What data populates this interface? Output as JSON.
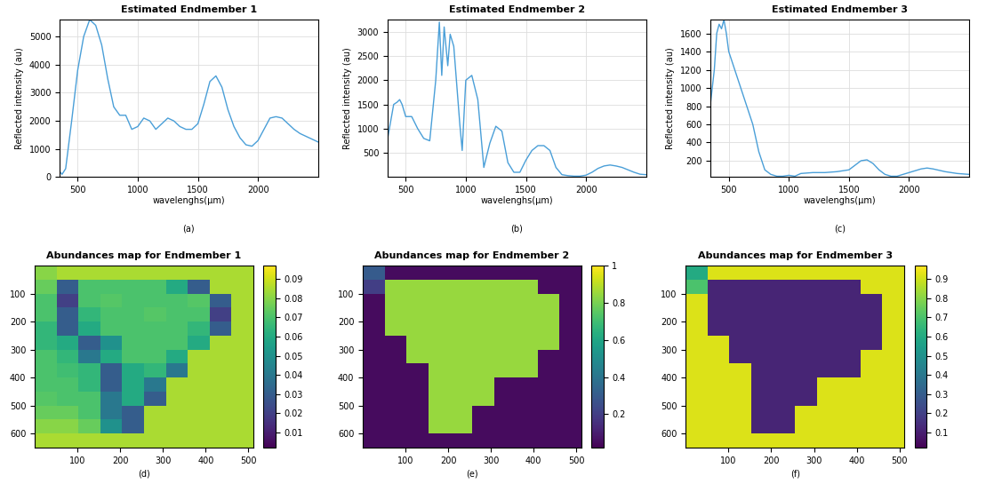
{
  "chart_data": [
    {
      "type": "line",
      "title": "Estimated Endmember 1",
      "x_label": "wavelenghs(µm)",
      "y_label": "Reflected intensity (au)",
      "caption": "(a)",
      "x": [
        350,
        370,
        400,
        450,
        500,
        550,
        600,
        650,
        700,
        750,
        800,
        850,
        900,
        950,
        1000,
        1050,
        1100,
        1150,
        1200,
        1250,
        1300,
        1350,
        1400,
        1450,
        1500,
        1550,
        1600,
        1650,
        1700,
        1750,
        1800,
        1850,
        1900,
        1950,
        2000,
        2050,
        2100,
        2150,
        2200,
        2250,
        2300,
        2350,
        2400,
        2450,
        2500
      ],
      "values": [
        200,
        100,
        300,
        2000,
        3800,
        5000,
        5600,
        5400,
        4700,
        3500,
        2500,
        2200,
        2200,
        1700,
        1800,
        2100,
        2000,
        1700,
        1900,
        2100,
        2000,
        1800,
        1700,
        1700,
        1900,
        2600,
        3400,
        3600,
        3200,
        2400,
        1800,
        1400,
        1150,
        1100,
        1300,
        1700,
        2100,
        2150,
        2100,
        1900,
        1700,
        1550,
        1450,
        1350,
        1250
      ],
      "color": "#4a9fd8",
      "xlim": [
        350,
        2500
      ],
      "ylim": [
        0,
        5600
      ],
      "xticks": [
        500,
        1000,
        1500,
        2000
      ],
      "yticks": [
        0,
        1000,
        2000,
        3000,
        4000,
        5000
      ],
      "grid": true
    },
    {
      "type": "line",
      "title": "Estimated Endmember 2",
      "x_label": "wavelenghs(µm)",
      "y_label": "Reflected intensity (au)",
      "caption": "(b)",
      "x": [
        350,
        400,
        430,
        450,
        470,
        500,
        550,
        600,
        650,
        700,
        750,
        780,
        800,
        820,
        850,
        870,
        900,
        950,
        970,
        1000,
        1050,
        1100,
        1150,
        1200,
        1250,
        1300,
        1350,
        1400,
        1450,
        1500,
        1550,
        1600,
        1650,
        1700,
        1750,
        1800,
        1850,
        1900,
        1950,
        2000,
        2050,
        2100,
        2150,
        2200,
        2250,
        2300,
        2350,
        2400,
        2450,
        2500
      ],
      "values": [
        800,
        1500,
        1550,
        1600,
        1500,
        1250,
        1250,
        1000,
        800,
        750,
        2000,
        3200,
        2100,
        3100,
        2300,
        2950,
        2700,
        1100,
        550,
        2000,
        2100,
        1600,
        200,
        700,
        1050,
        950,
        300,
        100,
        100,
        350,
        550,
        650,
        650,
        550,
        200,
        50,
        30,
        20,
        20,
        40,
        100,
        180,
        230,
        250,
        230,
        200,
        150,
        100,
        60,
        50
      ],
      "color": "#4a9fd8",
      "xlim": [
        350,
        2500
      ],
      "ylim": [
        0,
        3250
      ],
      "xticks": [
        500,
        1000,
        1500,
        2000
      ],
      "yticks": [
        500,
        1000,
        1500,
        2000,
        2500,
        3000
      ],
      "grid": true
    },
    {
      "type": "line",
      "title": "Estimated Endmember 3",
      "x_label": "wavelenghs(µm)",
      "y_label": "Reflected intensity (au)",
      "caption": "(c)",
      "x": [
        350,
        380,
        400,
        420,
        440,
        460,
        480,
        500,
        550,
        600,
        650,
        700,
        750,
        800,
        850,
        900,
        950,
        1000,
        1050,
        1100,
        1200,
        1300,
        1400,
        1500,
        1550,
        1600,
        1650,
        1700,
        1750,
        1800,
        1850,
        1900,
        2000,
        2050,
        2100,
        2150,
        2200,
        2300,
        2400,
        2500
      ],
      "values": [
        850,
        1200,
        1600,
        1700,
        1650,
        1750,
        1600,
        1400,
        1200,
        1000,
        800,
        600,
        300,
        100,
        50,
        30,
        30,
        40,
        30,
        60,
        70,
        70,
        80,
        100,
        150,
        200,
        210,
        170,
        100,
        50,
        30,
        30,
        70,
        90,
        110,
        120,
        110,
        80,
        60,
        50
      ],
      "color": "#4a9fd8",
      "xlim": [
        350,
        2500
      ],
      "ylim": [
        20,
        1750
      ],
      "xticks": [
        500,
        1000,
        1500,
        2000
      ],
      "yticks": [
        200,
        400,
        600,
        800,
        1000,
        1200,
        1400,
        1600
      ],
      "grid": true
    },
    {
      "type": "heatmap",
      "title": "Abundances map for Endmember 1",
      "caption": "(d)",
      "xlim": [
        0,
        512
      ],
      "ylim": [
        650,
        0
      ],
      "xticks": [
        100,
        200,
        300,
        400,
        500
      ],
      "yticks": [
        100,
        200,
        300,
        400,
        500,
        600
      ],
      "color_range": [
        0.002,
        0.097
      ],
      "colorbar_ticks": [
        0.01,
        0.02,
        0.03,
        0.04,
        0.05,
        0.06,
        0.07,
        0.08,
        0.09
      ],
      "cells": [
        [
          0.08,
          0.085,
          0.085,
          0.085,
          0.085,
          0.085,
          0.085,
          0.085,
          0.085,
          0.085
        ],
        [
          0.075,
          0.03,
          0.07,
          0.07,
          0.07,
          0.07,
          0.06,
          0.03,
          0.085,
          0.085
        ],
        [
          0.07,
          0.02,
          0.07,
          0.072,
          0.07,
          0.07,
          0.07,
          0.072,
          0.03,
          0.085
        ],
        [
          0.07,
          0.03,
          0.065,
          0.07,
          0.07,
          0.072,
          0.07,
          0.07,
          0.02,
          0.085
        ],
        [
          0.065,
          0.03,
          0.06,
          0.07,
          0.07,
          0.07,
          0.07,
          0.065,
          0.03,
          0.085
        ],
        [
          0.065,
          0.06,
          0.03,
          0.05,
          0.07,
          0.07,
          0.07,
          0.06,
          0.085,
          0.085
        ],
        [
          0.07,
          0.065,
          0.04,
          0.06,
          0.07,
          0.07,
          0.06,
          0.085,
          0.085,
          0.085
        ],
        [
          0.07,
          0.068,
          0.065,
          0.03,
          0.06,
          0.065,
          0.04,
          0.085,
          0.085,
          0.085
        ],
        [
          0.07,
          0.07,
          0.065,
          0.03,
          0.06,
          0.04,
          0.085,
          0.085,
          0.085,
          0.085
        ],
        [
          0.072,
          0.07,
          0.07,
          0.04,
          0.06,
          0.03,
          0.085,
          0.085,
          0.085,
          0.085
        ],
        [
          0.075,
          0.075,
          0.07,
          0.04,
          0.03,
          0.085,
          0.085,
          0.085,
          0.085,
          0.085
        ],
        [
          0.08,
          0.08,
          0.075,
          0.05,
          0.03,
          0.085,
          0.085,
          0.085,
          0.085,
          0.085
        ],
        [
          0.085,
          0.085,
          0.085,
          0.085,
          0.085,
          0.085,
          0.085,
          0.085,
          0.085,
          0.085
        ]
      ]
    },
    {
      "type": "heatmap",
      "title": "Abundances map for Endmember 2",
      "caption": "(e)",
      "xlim": [
        0,
        512
      ],
      "ylim": [
        650,
        0
      ],
      "xticks": [
        100,
        200,
        300,
        400,
        500
      ],
      "yticks": [
        100,
        200,
        300,
        400,
        500,
        600
      ],
      "color_range": [
        0.02,
        1
      ],
      "colorbar_ticks": [
        0.2,
        0.4,
        0.6,
        0.8,
        1
      ],
      "cells": [
        [
          0.3,
          0.05,
          0.05,
          0.05,
          0.05,
          0.05,
          0.05,
          0.05,
          0.05,
          0.05
        ],
        [
          0.2,
          0.85,
          0.85,
          0.85,
          0.85,
          0.85,
          0.85,
          0.85,
          0.05,
          0.05
        ],
        [
          0.05,
          0.85,
          0.85,
          0.85,
          0.85,
          0.85,
          0.85,
          0.85,
          0.85,
          0.05
        ],
        [
          0.05,
          0.85,
          0.85,
          0.85,
          0.85,
          0.85,
          0.85,
          0.85,
          0.85,
          0.05
        ],
        [
          0.05,
          0.85,
          0.85,
          0.85,
          0.85,
          0.85,
          0.85,
          0.85,
          0.85,
          0.05
        ],
        [
          0.05,
          0.05,
          0.85,
          0.85,
          0.85,
          0.85,
          0.85,
          0.85,
          0.85,
          0.05
        ],
        [
          0.05,
          0.05,
          0.85,
          0.85,
          0.85,
          0.85,
          0.85,
          0.85,
          0.05,
          0.05
        ],
        [
          0.05,
          0.05,
          0.05,
          0.85,
          0.85,
          0.85,
          0.85,
          0.85,
          0.05,
          0.05
        ],
        [
          0.05,
          0.05,
          0.05,
          0.85,
          0.85,
          0.85,
          0.05,
          0.05,
          0.05,
          0.05
        ],
        [
          0.05,
          0.05,
          0.05,
          0.85,
          0.85,
          0.85,
          0.05,
          0.05,
          0.05,
          0.05
        ],
        [
          0.05,
          0.05,
          0.05,
          0.85,
          0.85,
          0.05,
          0.05,
          0.05,
          0.05,
          0.05
        ],
        [
          0.05,
          0.05,
          0.05,
          0.85,
          0.85,
          0.05,
          0.05,
          0.05,
          0.05,
          0.05
        ],
        [
          0.05,
          0.05,
          0.05,
          0.05,
          0.05,
          0.05,
          0.05,
          0.05,
          0.05,
          0.05
        ]
      ]
    },
    {
      "type": "heatmap",
      "title": "Abundances map for Endmember 3",
      "caption": "(f)",
      "xlim": [
        0,
        512
      ],
      "ylim": [
        650,
        0
      ],
      "xticks": [
        100,
        200,
        300,
        400,
        500
      ],
      "yticks": [
        100,
        200,
        300,
        400,
        500,
        600
      ],
      "color_range": [
        0.02,
        0.97
      ],
      "colorbar_ticks": [
        0.1,
        0.2,
        0.3,
        0.4,
        0.5,
        0.6,
        0.7,
        0.8,
        0.9
      ],
      "cells": [
        [
          0.6,
          0.92,
          0.92,
          0.92,
          0.92,
          0.92,
          0.92,
          0.92,
          0.92,
          0.92
        ],
        [
          0.7,
          0.12,
          0.12,
          0.12,
          0.12,
          0.12,
          0.12,
          0.12,
          0.92,
          0.92
        ],
        [
          0.92,
          0.12,
          0.12,
          0.12,
          0.12,
          0.12,
          0.12,
          0.12,
          0.12,
          0.92
        ],
        [
          0.92,
          0.12,
          0.12,
          0.12,
          0.12,
          0.12,
          0.12,
          0.12,
          0.12,
          0.92
        ],
        [
          0.92,
          0.12,
          0.12,
          0.12,
          0.12,
          0.12,
          0.12,
          0.12,
          0.12,
          0.92
        ],
        [
          0.92,
          0.92,
          0.12,
          0.12,
          0.12,
          0.12,
          0.12,
          0.12,
          0.12,
          0.92
        ],
        [
          0.92,
          0.92,
          0.12,
          0.12,
          0.12,
          0.12,
          0.12,
          0.12,
          0.92,
          0.92
        ],
        [
          0.92,
          0.92,
          0.92,
          0.12,
          0.12,
          0.12,
          0.12,
          0.12,
          0.92,
          0.92
        ],
        [
          0.92,
          0.92,
          0.92,
          0.12,
          0.12,
          0.12,
          0.92,
          0.92,
          0.92,
          0.92
        ],
        [
          0.92,
          0.92,
          0.92,
          0.12,
          0.12,
          0.12,
          0.92,
          0.92,
          0.92,
          0.92
        ],
        [
          0.92,
          0.92,
          0.92,
          0.12,
          0.12,
          0.92,
          0.92,
          0.92,
          0.92,
          0.92
        ],
        [
          0.92,
          0.92,
          0.92,
          0.12,
          0.12,
          0.92,
          0.92,
          0.92,
          0.92,
          0.92
        ],
        [
          0.92,
          0.92,
          0.92,
          0.92,
          0.92,
          0.92,
          0.92,
          0.92,
          0.92,
          0.92
        ]
      ]
    }
  ]
}
